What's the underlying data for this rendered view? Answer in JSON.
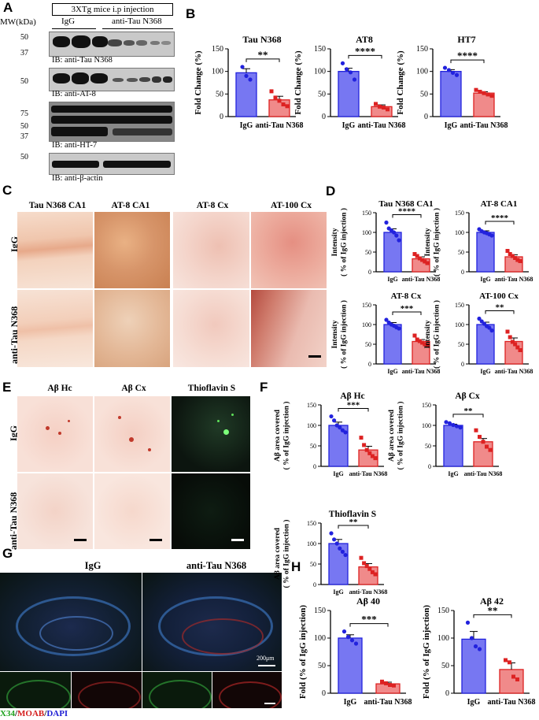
{
  "panels": {
    "A": {
      "label": "A",
      "header": "3XTg mice i.p injection",
      "mw_unit": "MW(kDa)",
      "lanes": [
        "IgG",
        "anti-Tau N368"
      ],
      "blots": [
        {
          "name": "tau-n368",
          "ib": "IB: anti-Tau N368",
          "markers": [
            "50",
            "37"
          ]
        },
        {
          "name": "at8",
          "ib": "IB: anti-AT-8",
          "markers": [
            "50"
          ]
        },
        {
          "name": "ht7",
          "ib": "IB: anti-HT-7",
          "markers": [
            "75",
            "50",
            "37"
          ]
        },
        {
          "name": "actin",
          "ib": "IB: anti-β-actin",
          "markers": [
            "50"
          ]
        }
      ]
    },
    "B": {
      "label": "B"
    },
    "C": {
      "label": "C",
      "columns": [
        "Tau N368 CA1",
        "AT-8 CA1",
        "AT-8 Cx",
        "AT-100 Cx"
      ],
      "rows": [
        "IgG",
        "anti-Tau N368"
      ]
    },
    "D": {
      "label": "D"
    },
    "E": {
      "label": "E",
      "columns": [
        "Aβ Hc",
        "Aβ Cx",
        "Thioflavin S"
      ],
      "rows": [
        "IgG",
        "anti-Tau N368"
      ]
    },
    "F": {
      "label": "F"
    },
    "G": {
      "label": "G",
      "columns": [
        "IgG",
        "anti-Tau N368"
      ],
      "scale": "200μm",
      "legend": {
        "x34": "X34",
        "sep1": "/",
        "moab": "MOAB",
        "sep2": "/",
        "dapi": "DAPI"
      }
    },
    "H": {
      "label": "H"
    }
  },
  "colors": {
    "igg_bar": "#7777f2",
    "igg_point": "#2222dd",
    "anti_bar": "#f08a8a",
    "anti_point": "#dd2222"
  },
  "chart_data": [
    {
      "id": "B1",
      "type": "bar",
      "title": "Tau N368",
      "ylabel": "Fold Change (%)",
      "categories": [
        "IgG",
        "anti-Tau N368"
      ],
      "values": [
        97,
        37
      ],
      "errors": [
        9,
        8
      ],
      "points": [
        [
          110,
          90,
          82
        ],
        [
          56,
          42,
          35,
          27,
          23
        ]
      ],
      "sig": "**",
      "ylim": [
        0,
        150
      ],
      "yticks": [
        0,
        50,
        100,
        150
      ]
    },
    {
      "id": "B2",
      "type": "bar",
      "title": "AT8",
      "ylabel": "Fold Change (%)",
      "categories": [
        "IgG",
        "anti-Tau N368"
      ],
      "values": [
        100,
        22
      ],
      "errors": [
        7,
        4
      ],
      "points": [
        [
          118,
          105,
          98,
          82
        ],
        [
          28,
          22,
          20,
          16
        ]
      ],
      "sig": "****",
      "ylim": [
        0,
        150
      ],
      "yticks": [
        0,
        50,
        100,
        150
      ]
    },
    {
      "id": "B3",
      "type": "bar",
      "title": "HT7",
      "ylabel": "Fold Change (%)",
      "categories": [
        "IgG",
        "anti-Tau N368"
      ],
      "values": [
        100,
        52
      ],
      "errors": [
        4,
        3
      ],
      "points": [
        [
          108,
          103,
          97,
          92
        ],
        [
          59,
          55,
          52,
          49,
          46
        ]
      ],
      "sig": "****",
      "ylim": [
        0,
        150
      ],
      "yticks": [
        0,
        50,
        100,
        150
      ]
    },
    {
      "id": "D1",
      "type": "bar",
      "title": "Tau N368 CA1",
      "ylabel": [
        "Intensity",
        "( % of IgG injection )"
      ],
      "categories": [
        "IgG",
        "anti-Tau N368"
      ],
      "values": [
        100,
        33
      ],
      "errors": [
        9,
        5
      ],
      "points": [
        [
          125,
          110,
          105,
          100,
          92,
          80
        ],
        [
          45,
          40,
          34,
          30,
          26,
          22
        ]
      ],
      "sig": "****",
      "ylim": [
        0,
        150
      ],
      "yticks": [
        0,
        50,
        100,
        150
      ]
    },
    {
      "id": "D2",
      "type": "bar",
      "title": "AT-8 CA1",
      "ylabel": [
        "Intensity",
        "( % of IgG injection )"
      ],
      "categories": [
        "IgG",
        "anti-Tau N368"
      ],
      "values": [
        100,
        38
      ],
      "errors": [
        4,
        5
      ],
      "points": [
        [
          108,
          103,
          100,
          98,
          95,
          92
        ],
        [
          53,
          45,
          40,
          35,
          30,
          27
        ]
      ],
      "sig": "****",
      "ylim": [
        0,
        150
      ],
      "yticks": [
        0,
        50,
        100,
        150
      ]
    },
    {
      "id": "D3",
      "type": "bar",
      "title": "AT-8 Cx",
      "ylabel": [
        "Intensity",
        "( % of IgG injection )"
      ],
      "categories": [
        "IgG",
        "anti-Tau N368"
      ],
      "values": [
        100,
        57
      ],
      "errors": [
        5,
        5
      ],
      "points": [
        [
          112,
          105,
          100,
          97,
          93,
          90
        ],
        [
          72,
          62,
          58,
          54,
          50,
          47
        ]
      ],
      "sig": "***",
      "ylim": [
        0,
        150
      ],
      "yticks": [
        0,
        50,
        100,
        150
      ]
    },
    {
      "id": "D4",
      "type": "bar",
      "title": "AT-100 Cx",
      "ylabel": [
        "Intensity",
        "( % of IgG injection )"
      ],
      "categories": [
        "IgG",
        "anti-Tau N368"
      ],
      "values": [
        100,
        57
      ],
      "errors": [
        6,
        9
      ],
      "points": [
        [
          115,
          108,
          102,
          96,
          92,
          85
        ],
        [
          82,
          68,
          56,
          50,
          42,
          35
        ]
      ],
      "sig": "**",
      "ylim": [
        0,
        150
      ],
      "yticks": [
        0,
        50,
        100,
        150
      ]
    },
    {
      "id": "F1",
      "type": "bar",
      "title": "Aβ Hc",
      "ylabel": [
        "Aβ area covered",
        "( % of IgG injection )"
      ],
      "categories": [
        "IgG",
        "anti-Tau N368"
      ],
      "values": [
        100,
        40
      ],
      "errors": [
        8,
        9
      ],
      "points": [
        [
          122,
          112,
          100,
          95,
          88,
          83
        ],
        [
          70,
          52,
          40,
          32,
          25,
          20
        ]
      ],
      "sig": "***",
      "ylim": [
        0,
        150
      ],
      "yticks": [
        0,
        50,
        100,
        150
      ]
    },
    {
      "id": "F2",
      "type": "bar",
      "title": "Aβ Cx",
      "ylabel": [
        "Aβ area covered",
        "( % of IgG injection )"
      ],
      "categories": [
        "IgG",
        "anti-Tau N368"
      ],
      "values": [
        100,
        60
      ],
      "errors": [
        3,
        8
      ],
      "points": [
        [
          108,
          105,
          101,
          98,
          95
        ],
        [
          88,
          72,
          60,
          48,
          40
        ]
      ],
      "sig": "**",
      "ylim": [
        0,
        150
      ],
      "yticks": [
        0,
        50,
        100,
        150
      ]
    },
    {
      "id": "F3",
      "type": "bar",
      "title": "Thioflavin S",
      "ylabel": [
        "Aβ area covered",
        "( % of IgG injection )"
      ],
      "categories": [
        "IgG",
        "anti-Tau N368"
      ],
      "values": [
        100,
        43
      ],
      "errors": [
        10,
        8
      ],
      "points": [
        [
          125,
          110,
          100,
          88,
          80,
          72
        ],
        [
          65,
          52,
          45,
          38,
          30,
          25
        ]
      ],
      "sig": "**",
      "ylim": [
        0,
        150
      ],
      "yticks": [
        0,
        50,
        100,
        150
      ]
    },
    {
      "id": "H1",
      "type": "bar",
      "title": "Aβ 40",
      "ylabel": "Fold (% of IgG injection)",
      "categories": [
        "IgG",
        "anti-Tau N368"
      ],
      "values": [
        100,
        17
      ],
      "errors": [
        6,
        3
      ],
      "points": [
        [
          112,
          102,
          96,
          90
        ],
        [
          21,
          18,
          15,
          14
        ]
      ],
      "sig": "***",
      "ylim": [
        0,
        150
      ],
      "yticks": [
        0,
        50,
        100,
        150
      ]
    },
    {
      "id": "H2",
      "type": "bar",
      "title": "Aβ 42",
      "ylabel": "Fold (% of IgG injection)",
      "categories": [
        "IgG",
        "anti-Tau N368"
      ],
      "values": [
        98,
        43
      ],
      "errors": [
        14,
        12
      ],
      "points": [
        [
          128,
          100,
          85,
          80
        ],
        [
          60,
          56,
          30,
          25
        ]
      ],
      "sig": "**",
      "ylim": [
        0,
        150
      ],
      "yticks": [
        0,
        50,
        100,
        150
      ]
    }
  ]
}
